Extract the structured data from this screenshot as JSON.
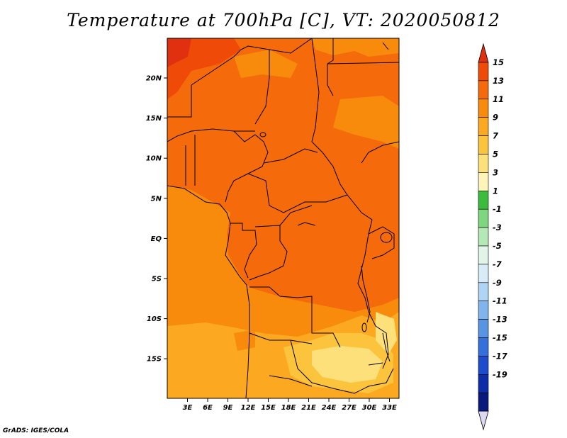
{
  "title": "Temperature at 700hPa [C], VT: 2020050812",
  "credit": "GrADS: IGES/COLA",
  "map": {
    "lat_labels": [
      "20N",
      "15N",
      "10N",
      "5N",
      "EQ",
      "5S",
      "10S",
      "15S"
    ],
    "lon_labels": [
      "3E",
      "6E",
      "9E",
      "12E",
      "15E",
      "18E",
      "21E",
      "24E",
      "27E",
      "30E",
      "33E"
    ]
  },
  "colorbar": {
    "labels": [
      "15",
      "13",
      "11",
      "9",
      "7",
      "5",
      "3",
      "1",
      "-1",
      "-3",
      "-5",
      "-7",
      "-9",
      "-11",
      "-13",
      "-15",
      "-17",
      "-19"
    ],
    "colors": [
      "#e03010",
      "#f04a08",
      "#f56a0a",
      "#f88a0c",
      "#fca820",
      "#fcc43c",
      "#fde07a",
      "#fff4b8",
      "#3cbc3c",
      "#7ed67e",
      "#b4e8b4",
      "#e0f4e8",
      "#d8ecf8",
      "#b0d4f4",
      "#80b4ec",
      "#5894e4",
      "#3470dc",
      "#1c4ccc",
      "#0c2ca8",
      "#0a1a7c",
      "#dcd8f4"
    ]
  }
}
